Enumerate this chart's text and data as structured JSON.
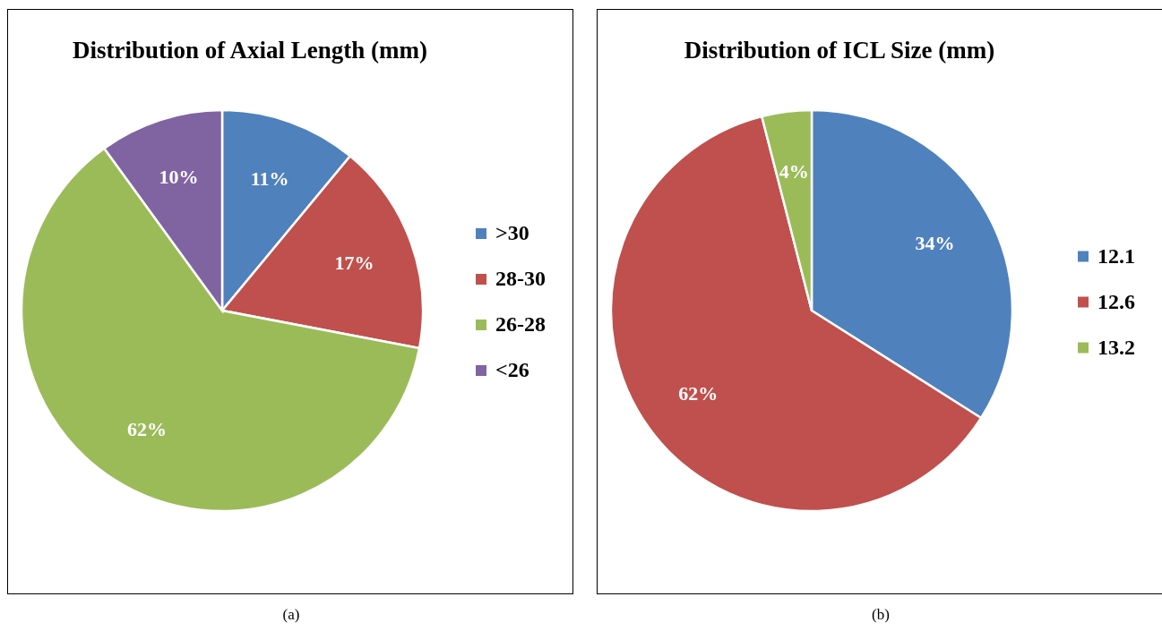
{
  "chart_data": [
    {
      "type": "pie",
      "title": "Distribution of Axial Length (mm)",
      "categories": [
        ">30",
        "28-30",
        "26-28",
        "<26"
      ],
      "values": [
        11,
        17,
        62,
        10
      ],
      "colors": [
        "#4f81bd",
        "#c0504d",
        "#9bbb59",
        "#8064a2"
      ],
      "value_labels": [
        "11%",
        "17%",
        "62%",
        "10%"
      ],
      "legend": "right",
      "annotations": [
        "(a)"
      ]
    },
    {
      "type": "pie",
      "title": "Distribution of ICL Size (mm)",
      "categories": [
        "12.1",
        "12.6",
        "13.2"
      ],
      "values": [
        34,
        62,
        4
      ],
      "colors": [
        "#4f81bd",
        "#c0504d",
        "#9bbb59"
      ],
      "value_labels": [
        "34%",
        "62%",
        "4%"
      ],
      "legend": "right",
      "annotations": [
        "(b)"
      ]
    }
  ]
}
